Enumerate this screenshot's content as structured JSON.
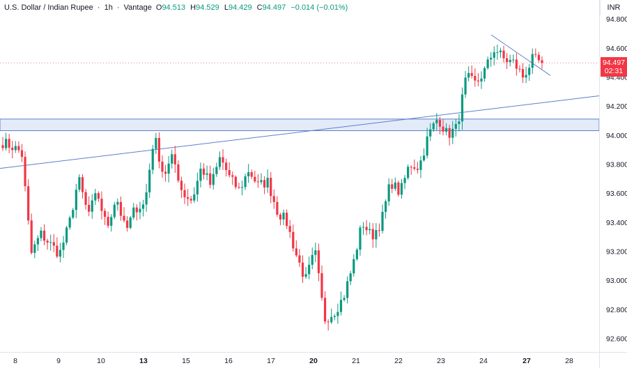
{
  "header": {
    "title": "U.S. Dollar / Indian Rupee",
    "interval": "1h",
    "source": "Vantage",
    "open_key": "O",
    "open": "94.513",
    "high_key": "H",
    "high": "94.529",
    "low_key": "L",
    "low": "94.429",
    "close_key": "C",
    "close": "94.497",
    "change": "−0.014 (−0.01%)",
    "separator": "·"
  },
  "currency": "INR",
  "last_price": {
    "price": "94.497",
    "countdown": "02:31",
    "color": "#f23645"
  },
  "colors": {
    "up": "#089981",
    "down": "#f23645",
    "trendline": "#5b7fc9",
    "zone_fill": "#e3ebf9",
    "zone_border": "#5b7fc9"
  },
  "chart_data": {
    "type": "candlestick",
    "y_ticks": [
      "94.800",
      "94.600",
      "94.400",
      "94.200",
      "94.000",
      "93.800",
      "93.600",
      "93.400",
      "93.200",
      "93.000",
      "92.800",
      "92.600"
    ],
    "ylim": [
      92.53,
      94.93
    ],
    "x_ticks": [
      {
        "label": "8",
        "bold": false
      },
      {
        "label": "9",
        "bold": false
      },
      {
        "label": "10",
        "bold": false
      },
      {
        "label": "13",
        "bold": true
      },
      {
        "label": "15",
        "bold": false
      },
      {
        "label": "16",
        "bold": false
      },
      {
        "label": "17",
        "bold": false
      },
      {
        "label": "20",
        "bold": true
      },
      {
        "label": "21",
        "bold": false
      },
      {
        "label": "22",
        "bold": false
      },
      {
        "label": "23",
        "bold": false
      },
      {
        "label": "24",
        "bold": false
      },
      {
        "label": "27",
        "bold": true
      },
      {
        "label": "28",
        "bold": false
      }
    ],
    "zone": {
      "low": 94.03,
      "high": 94.11
    },
    "support_line": {
      "from_value": 93.77,
      "to_value": 94.27
    },
    "wedge_line": {
      "from_value": 94.69,
      "to_value": 94.41
    },
    "anchors": [
      93.95,
      93.92,
      93.88,
      93.18,
      93.32,
      93.25,
      93.18,
      93.38,
      93.7,
      93.45,
      93.6,
      93.36,
      93.58,
      93.33,
      93.5,
      93.52,
      94.0,
      93.72,
      93.85,
      93.6,
      93.55,
      93.78,
      93.65,
      93.85,
      93.7,
      93.62,
      93.76,
      93.65,
      93.68,
      93.48,
      93.4,
      93.18,
      93.0,
      93.2,
      92.73,
      92.78,
      92.88,
      93.1,
      93.4,
      93.3,
      93.4,
      93.68,
      93.6,
      93.8,
      93.78,
      94.0,
      94.12,
      94.0,
      94.05,
      94.4,
      94.35,
      94.45,
      94.6,
      94.52,
      94.5,
      94.4,
      94.52,
      94.497
    ]
  }
}
